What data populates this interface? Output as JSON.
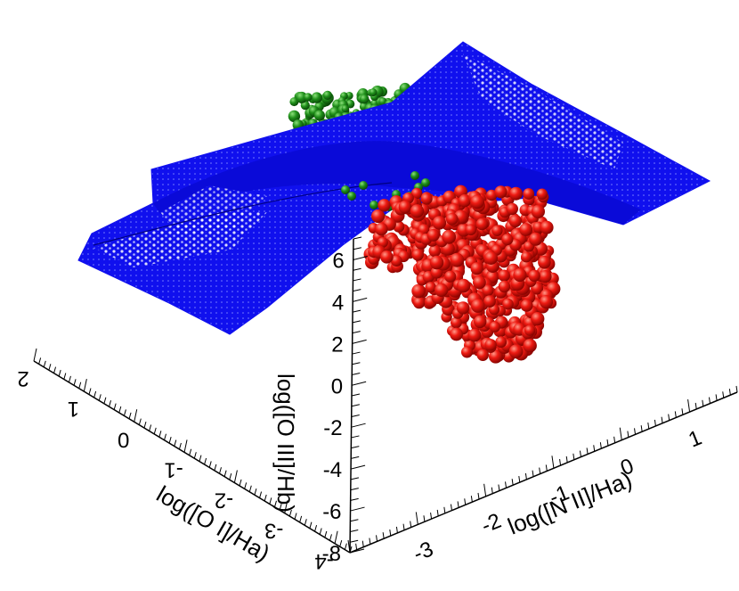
{
  "chart_data": {
    "type": "scatter3d",
    "title": "",
    "axes": {
      "x": {
        "label": "log([N II]/Ha)",
        "ticks": [
          -3,
          -2,
          -1,
          0,
          1
        ],
        "tick_labels": [
          "-3",
          "-2",
          "-1",
          "0",
          "1"
        ],
        "range": [
          -4,
          1.7
        ]
      },
      "y": {
        "label": "log([O I]/Ha)",
        "ticks": [
          -4,
          -3,
          -2,
          -1,
          0,
          1,
          2
        ],
        "tick_labels": [
          "-4",
          "-3",
          "-2",
          "-1",
          "0",
          "1",
          "2"
        ],
        "range": [
          -4.3,
          2
        ]
      },
      "z": {
        "label": "log([O III]/Hb)",
        "ticks": [
          -8,
          -6,
          -4,
          -2,
          0,
          2,
          4,
          6
        ],
        "tick_labels": [
          "-8",
          "-6",
          "-4",
          "-2",
          "0",
          "2",
          "4",
          "6"
        ],
        "range": [
          -8,
          7
        ]
      }
    },
    "series": [
      {
        "kind": "surface",
        "color": "#1010ee"
      },
      {
        "kind": "points",
        "color": "#ee1a12"
      },
      {
        "kind": "points",
        "color": "#1f8f1a"
      }
    ],
    "grid": false,
    "legend": "none"
  }
}
